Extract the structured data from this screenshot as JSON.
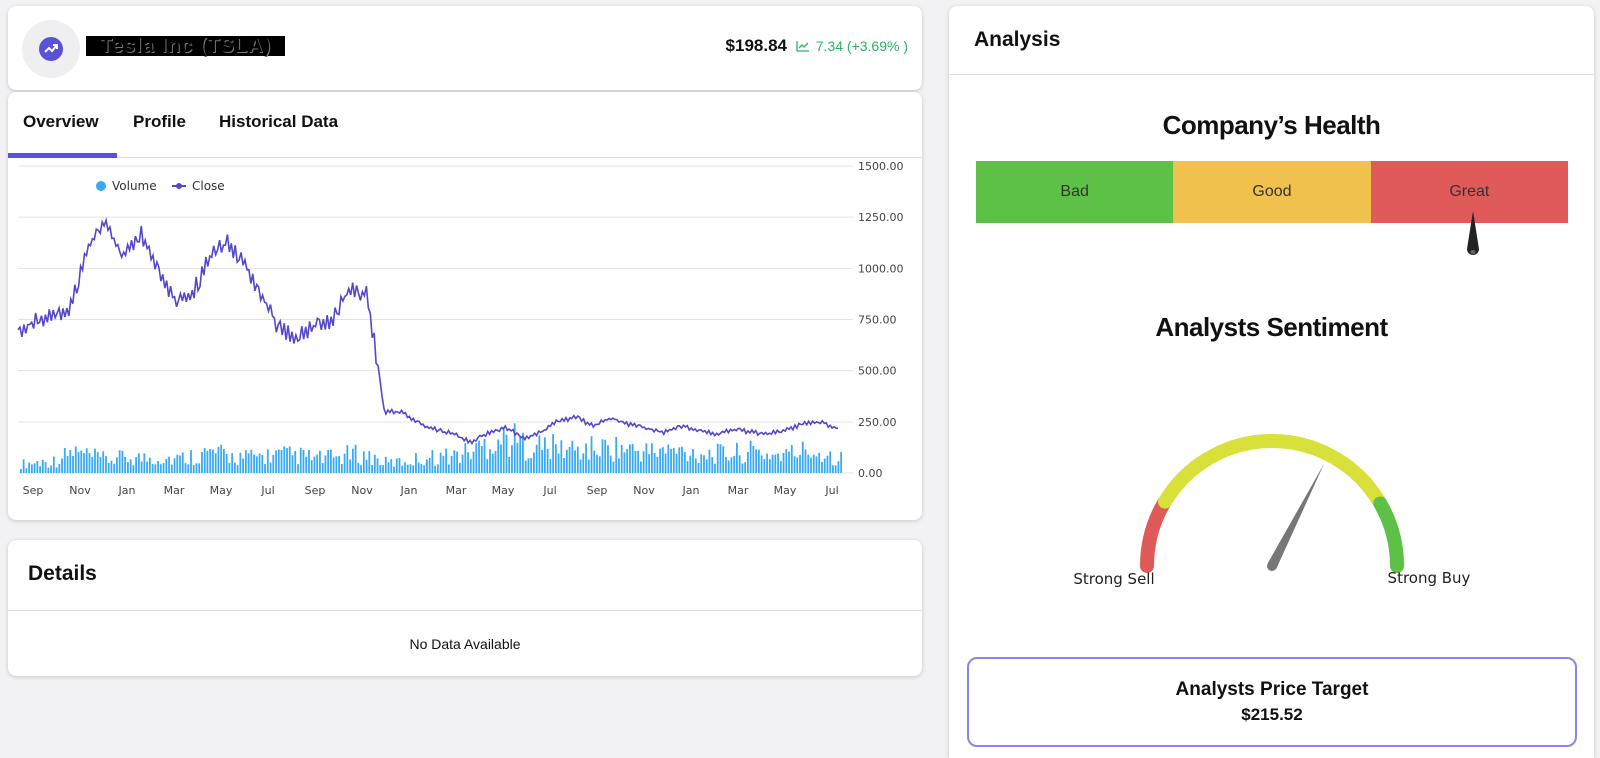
{
  "header": {
    "company_name": "Tesla Inc (TSLA)",
    "price": "$198.84",
    "change": "7.34 (+3.69% )",
    "change_color": "#28b463"
  },
  "tabs": [
    {
      "label": "Overview",
      "active": true
    },
    {
      "label": "Profile",
      "active": false
    },
    {
      "label": "Historical Data",
      "active": false
    }
  ],
  "accent_color": "#5a52d6",
  "chart_data": {
    "type": "line",
    "legend": [
      "Volume",
      "Close"
    ],
    "legend_placement": "top-left",
    "grid": true,
    "x_tick_labels": [
      "Sep",
      "Nov",
      "Jan",
      "Mar",
      "May",
      "Jul",
      "Sep",
      "Nov",
      "Jan",
      "Mar",
      "May",
      "Jul",
      "Sep",
      "Nov",
      "Jan",
      "Mar",
      "May",
      "Jul"
    ],
    "y_tick_labels": [
      "1500.00",
      "1250.00",
      "1000.00",
      "750.00",
      "500.00",
      "250.00",
      "0.00"
    ],
    "ylim": [
      0,
      1500
    ],
    "series": [
      {
        "name": "Close",
        "color": "#5448c8",
        "values": [
          700,
          740,
          760,
          800,
          1100,
          1230,
          1050,
          1180,
          1000,
          850,
          880,
          1050,
          1130,
          1020,
          870,
          700,
          670,
          720,
          750,
          900,
          880,
          300,
          300,
          240,
          210,
          190,
          150,
          200,
          220,
          170,
          200,
          260,
          270,
          230,
          270,
          240,
          220,
          200,
          230,
          210,
          190,
          210,
          200,
          190,
          210,
          240,
          250,
          215
        ]
      },
      {
        "name": "Volume",
        "color": "#3aaaf0",
        "values": [
          55,
          65,
          75,
          130,
          100,
          80,
          95,
          90,
          95,
          85,
          110,
          125,
          100,
          95,
          105,
          110,
          105,
          90,
          95,
          115,
          100,
          60,
          70,
          90,
          100,
          110,
          140,
          200,
          210,
          170,
          160,
          150,
          140,
          150,
          155,
          140,
          130,
          135,
          130,
          120,
          115,
          120,
          130,
          110,
          115,
          140,
          120,
          90
        ]
      }
    ]
  },
  "details": {
    "title": "Details",
    "empty_text": "No Data Available"
  },
  "analysis": {
    "title": "Analysis",
    "health_title": "Company’s Health",
    "health_segments": [
      {
        "label": "Bad",
        "color": "#5dc147"
      },
      {
        "label": "Good",
        "color": "#f0c14d"
      },
      {
        "label": "Great",
        "color": "#e05a5a"
      }
    ],
    "health_level": 0.84,
    "sentiment_title": "Analysts Sentiment",
    "sentiment_left": "Strong Sell",
    "sentiment_right": "Strong Buy",
    "sentiment_level": 0.65,
    "target_title": "Analysts Price Target",
    "target_value": "$215.52"
  }
}
